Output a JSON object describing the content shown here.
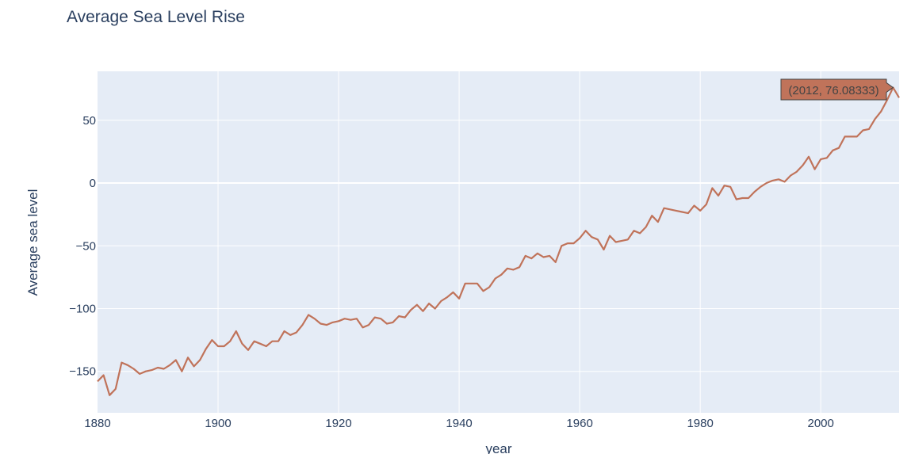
{
  "chart_data": {
    "type": "line",
    "title": "Average Sea Level Rise",
    "xlabel": "year",
    "ylabel": "Average sea level",
    "xlim": [
      1880,
      2013
    ],
    "ylim": [
      -183,
      89
    ],
    "x_ticks": [
      1880,
      1900,
      1920,
      1940,
      1960,
      1980,
      2000
    ],
    "y_ticks": [
      50,
      0,
      -50,
      -100,
      -150
    ],
    "y_tick_labels": [
      "50",
      "0",
      "−50",
      "−100",
      "−150"
    ],
    "grid": true,
    "colors": {
      "line": "#c0735a",
      "plot_bg": "#e5ecf6",
      "grid": "#ffffff",
      "text": "#2a3f5f"
    },
    "series": [
      {
        "x": [
          1880,
          1881,
          1882,
          1883,
          1884,
          1885,
          1886,
          1887,
          1888,
          1889,
          1890,
          1891,
          1892,
          1893,
          1894,
          1895,
          1896,
          1897,
          1898,
          1899,
          1900,
          1901,
          1902,
          1903,
          1904,
          1905,
          1906,
          1907,
          1908,
          1909,
          1910,
          1911,
          1912,
          1913,
          1914,
          1915,
          1916,
          1917,
          1918,
          1919,
          1920,
          1921,
          1922,
          1923,
          1924,
          1925,
          1926,
          1927,
          1928,
          1929,
          1930,
          1931,
          1932,
          1933,
          1934,
          1935,
          1936,
          1937,
          1938,
          1939,
          1940,
          1941,
          1942,
          1943,
          1944,
          1945,
          1946,
          1947,
          1948,
          1949,
          1950,
          1951,
          1952,
          1953,
          1954,
          1955,
          1956,
          1957,
          1958,
          1959,
          1960,
          1961,
          1962,
          1963,
          1964,
          1965,
          1966,
          1967,
          1968,
          1969,
          1970,
          1971,
          1972,
          1973,
          1974,
          1975,
          1976,
          1977,
          1978,
          1979,
          1980,
          1981,
          1982,
          1983,
          1984,
          1985,
          1986,
          1987,
          1988,
          1989,
          1990,
          1991,
          1992,
          1993,
          1994,
          1995,
          1996,
          1997,
          1998,
          1999,
          2000,
          2001,
          2002,
          2003,
          2004,
          2005,
          2006,
          2007,
          2008,
          2009,
          2010,
          2011,
          2012,
          2013
        ],
        "y": [
          -158,
          -153,
          -169,
          -164,
          -143,
          -145,
          -148,
          -152,
          -150,
          -149,
          -147,
          -148,
          -145,
          -141,
          -150,
          -139,
          -146,
          -141,
          -132,
          -125,
          -130,
          -130,
          -126,
          -118,
          -128,
          -133,
          -126,
          -128,
          -130,
          -126,
          -126,
          -118,
          -121,
          -119,
          -113,
          -105,
          -108,
          -112,
          -113,
          -111,
          -110,
          -108,
          -109,
          -108,
          -115,
          -113,
          -107,
          -108,
          -112,
          -111,
          -106,
          -107,
          -101,
          -97,
          -102,
          -96,
          -100,
          -94,
          -91,
          -87,
          -92,
          -80,
          -80,
          -80,
          -86,
          -83,
          -76,
          -73,
          -68,
          -69,
          -67,
          -58,
          -60,
          -56,
          -59,
          -58,
          -63,
          -50,
          -48,
          -48,
          -44,
          -38,
          -43,
          -45,
          -53,
          -42,
          -47,
          -46,
          -45,
          -38,
          -40,
          -35,
          -26,
          -31,
          -20,
          -21,
          -22,
          -23,
          -24,
          -18,
          -22,
          -17,
          -4,
          -10,
          -2,
          -3,
          -13,
          -12,
          -12,
          -7,
          -3,
          0,
          2,
          3,
          1,
          6,
          9,
          14,
          21,
          11,
          19,
          20,
          26,
          28,
          37,
          37,
          37,
          42,
          43,
          51,
          57,
          66,
          76.08333,
          68
        ]
      }
    ],
    "hover_label": "(2012, 76.08333)"
  }
}
